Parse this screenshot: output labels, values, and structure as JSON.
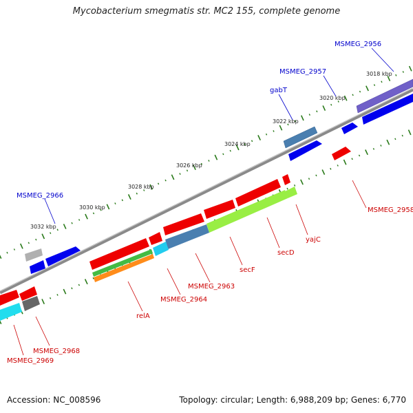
{
  "title": "Mycobacterium smegmatis str. MC2 155, complete genome",
  "footer": {
    "accession": "Accession: NC_008596",
    "topology": "Topology: circular; Length: 6,988,209 bp; Genes: 6,770"
  },
  "colors": {
    "backbone": "#8a8a8a",
    "tick": "#2a7a1a",
    "forward_label": "#0000cc",
    "reverse_label": "#cc0000"
  },
  "ruler_labels": [
    "3018 kbp",
    "3020 kbp",
    "3022 kbp",
    "3024 kbp",
    "3026 kbp",
    "3028 kbp",
    "3030 kbp",
    "3032 kbp"
  ],
  "forward_gene_labels": [
    "MSMEG_2956",
    "MSMEG_2957",
    "gabT",
    "MSMEG_2966"
  ],
  "reverse_gene_labels": [
    "MSMEG_2958",
    "yajC",
    "secD",
    "secF",
    "MSMEG_2963",
    "MSMEG_2964",
    "relA",
    "MSMEG_2968",
    "MSMEG_2969"
  ],
  "features": [
    {
      "name": "MSMEG_2956",
      "strand": "forward",
      "color": "#7060c8"
    },
    {
      "name": "MSMEG_2956-cds",
      "strand": "forward",
      "color": "#0000ee"
    },
    {
      "name": "MSMEG_2957",
      "strand": "forward",
      "color": "#0000ee"
    },
    {
      "name": "gabT-gene",
      "strand": "forward",
      "color": "#4a7fb0"
    },
    {
      "name": "gabT-cds",
      "strand": "forward",
      "color": "#0000ee"
    },
    {
      "name": "MSMEG_2966-gene",
      "strand": "forward",
      "color": "#b0b0b0"
    },
    {
      "name": "MSMEG_2966-cds-a",
      "strand": "forward",
      "color": "#0000ee"
    },
    {
      "name": "MSMEG_2966-cds-b",
      "strand": "forward",
      "color": "#0000ee"
    },
    {
      "name": "MSMEG_2958",
      "strand": "reverse",
      "color": "#ee0000"
    },
    {
      "name": "yajC",
      "strand": "reverse",
      "color": "#ee0000"
    },
    {
      "name": "secD",
      "strand": "reverse",
      "color": "#ee0000"
    },
    {
      "name": "secF",
      "strand": "reverse",
      "color": "#ee0000"
    },
    {
      "name": "MSMEG_2963",
      "strand": "reverse",
      "color": "#ee0000"
    },
    {
      "name": "MSMEG_2964",
      "strand": "reverse",
      "color": "#ee0000"
    },
    {
      "name": "relA",
      "strand": "reverse",
      "color": "#ee0000"
    },
    {
      "name": "yajC-track",
      "strand": "reverse",
      "color": "#99ee44"
    },
    {
      "name": "secDF-track",
      "strand": "reverse",
      "color": "#99ee44"
    },
    {
      "name": "MSMEG_2963-track",
      "strand": "reverse",
      "color": "#4a7fb0"
    },
    {
      "name": "MSMEG_2964-track",
      "strand": "reverse",
      "color": "#22ccee"
    },
    {
      "name": "relA-track-a",
      "strand": "reverse",
      "color": "#44bb44"
    },
    {
      "name": "relA-track-b",
      "strand": "reverse",
      "color": "#ff8c1a"
    },
    {
      "name": "MSMEG_2968",
      "strand": "reverse",
      "color": "#ee0000"
    },
    {
      "name": "MSMEG_2968-track",
      "strand": "reverse",
      "color": "#666666"
    },
    {
      "name": "MSMEG_2969",
      "strand": "reverse",
      "color": "#ee0000"
    },
    {
      "name": "MSMEG_2969-track",
      "strand": "reverse",
      "color": "#22ddee"
    }
  ]
}
